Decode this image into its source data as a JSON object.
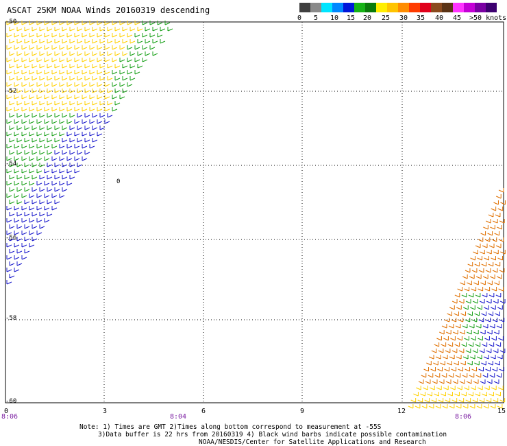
{
  "title": "ASCAT 25KM NOAA Winds 20160319 descending",
  "colorbar": {
    "labels": [
      "0",
      "5",
      "10",
      "15",
      "20",
      "25",
      "30",
      "35",
      "40",
      "45",
      ">50 knots"
    ],
    "colors": [
      "#3f3f3f",
      "#8a8a8a",
      "#00e5ff",
      "#0088ff",
      "#0016d9",
      "#16b316",
      "#0a7a0a",
      "#ffee00",
      "#ffc400",
      "#ff8c00",
      "#ff3b00",
      "#e0001a",
      "#8b4a1d",
      "#5a3315",
      "#ff33ff",
      "#c400d6",
      "#7a00a3",
      "#3d0070"
    ]
  },
  "map": {
    "y_labels": [
      "-50",
      "-52",
      "-54",
      "-56",
      "-58",
      "-60"
    ],
    "x_labels": [
      "0",
      "3",
      "6",
      "9",
      "12",
      "15"
    ],
    "time_labels": [
      "8:06",
      "8:04",
      "8:06"
    ],
    "contour_label": "0",
    "wind_colors": {
      "yellow": "#ffd000",
      "green": "#19a019",
      "blue": "#1a1acc",
      "orange": "#e07000"
    }
  },
  "notes": [
    "Note: 1) Times are GMT 2)Times along bottom correspond to measurement at -55S",
    "3)Data buffer is 22 hrs from 20160319 4) Black wind barbs indicate possible contamination",
    "NOAA/NESDIS/Center for Satellite Applications and Research"
  ]
}
